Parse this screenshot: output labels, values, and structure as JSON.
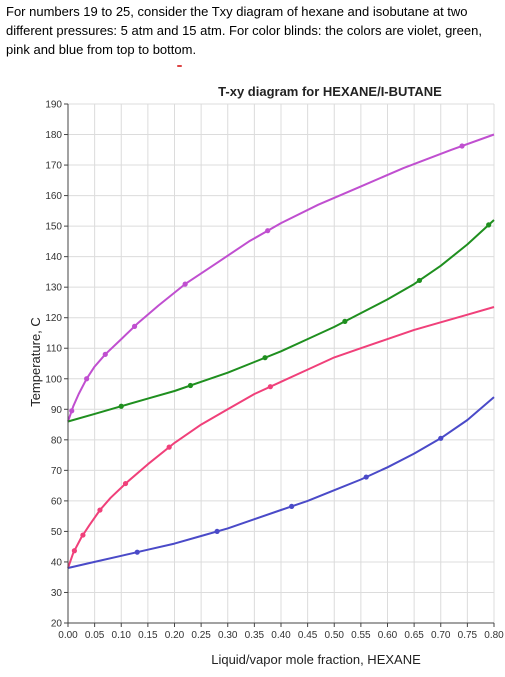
{
  "intro_text": "For numbers 19 to 25, consider the Txy diagram of hexane and isobutane at two different pressures: 5 atm and 15 atm. For color blinds: the colors are violet, green, pink and blue from top to bottom.",
  "chart_data": {
    "type": "line",
    "title": "T-xy diagram for HEXANE/I-BUTANE",
    "xlabel": "Liquid/vapor mole fraction, HEXANE",
    "ylabel": "Temperature, C",
    "xlim": [
      0,
      0.8
    ],
    "ylim": [
      20,
      190
    ],
    "x_ticks": [
      "0.00",
      "0.05",
      "0.10",
      "0.15",
      "0.20",
      "0.25",
      "0.30",
      "0.35",
      "0.40",
      "0.45",
      "0.50",
      "0.55",
      "0.60",
      "0.65",
      "0.70",
      "0.75",
      "0.80"
    ],
    "y_ticks": [
      "20",
      "30",
      "40",
      "50",
      "60",
      "70",
      "80",
      "90",
      "100",
      "110",
      "120",
      "130",
      "140",
      "150",
      "160",
      "170",
      "180",
      "190"
    ],
    "grid": true,
    "series": [
      {
        "color": "#c04fd0",
        "x": [
          0,
          0.01,
          0.02,
          0.035,
          0.05,
          0.07,
          0.1,
          0.13,
          0.17,
          0.22,
          0.28,
          0.34,
          0.4,
          0.47,
          0.55,
          0.63,
          0.72,
          0.8
        ],
        "y": [
          86,
          91,
          95,
          100,
          104,
          108,
          113,
          118,
          124,
          131,
          138,
          145,
          151,
          157,
          163,
          169,
          175,
          180
        ],
        "markers": [
          0.007,
          0.035,
          0.07,
          0.125,
          0.22,
          0.375,
          0.74
        ]
      },
      {
        "color": "#1f8f1f",
        "x": [
          0,
          0.05,
          0.1,
          0.15,
          0.2,
          0.25,
          0.3,
          0.35,
          0.4,
          0.45,
          0.5,
          0.55,
          0.6,
          0.65,
          0.7,
          0.75,
          0.8
        ],
        "y": [
          86,
          88.5,
          91,
          93.5,
          96,
          99,
          102,
          105.5,
          109,
          113,
          117,
          121.5,
          126,
          131,
          137,
          144,
          152
        ],
        "markers": [
          0.1,
          0.23,
          0.37,
          0.52,
          0.66,
          0.79
        ]
      },
      {
        "color": "#f0407a",
        "x": [
          0,
          0.01,
          0.025,
          0.04,
          0.06,
          0.08,
          0.11,
          0.15,
          0.2,
          0.25,
          0.3,
          0.35,
          0.4,
          0.45,
          0.5,
          0.55,
          0.6,
          0.65,
          0.7,
          0.75,
          0.8
        ],
        "y": [
          38,
          43,
          48,
          52,
          57,
          61,
          66,
          72,
          79,
          85,
          90,
          95,
          99,
          103,
          107,
          110,
          113,
          116,
          118.5,
          121,
          123.5
        ],
        "markers": [
          0.012,
          0.028,
          0.06,
          0.108,
          0.19,
          0.38
        ]
      },
      {
        "color": "#4a4ac8",
        "x": [
          0,
          0.05,
          0.1,
          0.15,
          0.2,
          0.25,
          0.3,
          0.35,
          0.4,
          0.45,
          0.5,
          0.55,
          0.6,
          0.65,
          0.7,
          0.75,
          0.8
        ],
        "y": [
          38,
          40,
          42,
          44,
          46,
          48.5,
          51,
          54,
          57,
          60,
          63.5,
          67,
          71,
          75.5,
          80.5,
          86.5,
          94
        ],
        "markers": [
          0.13,
          0.28,
          0.42,
          0.56,
          0.7
        ]
      }
    ]
  }
}
